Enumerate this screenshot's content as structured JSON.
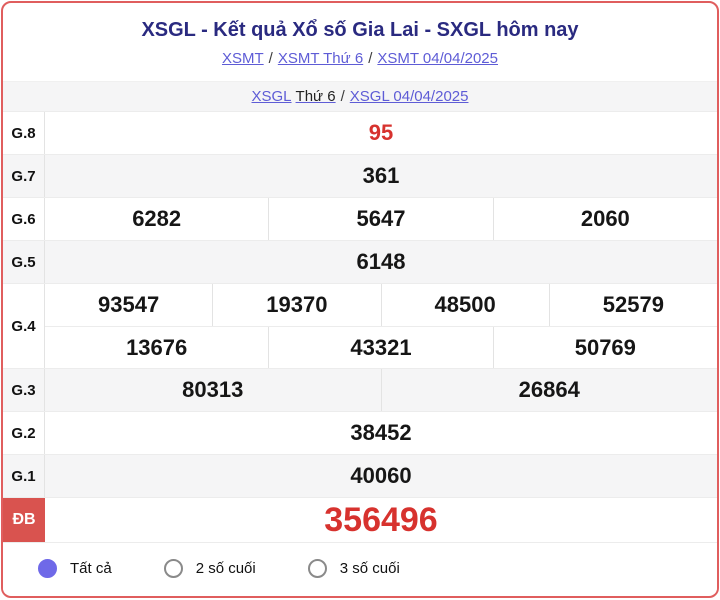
{
  "header": {
    "title": "XSGL - Kết quả Xổ số Gia Lai - SXGL hôm nay",
    "separator": "/",
    "breadcrumb1": [
      "XSMT",
      "XSMT Thứ 6",
      "XSMT 04/04/2025"
    ],
    "breadcrumb2": {
      "link1_blue": "XSGL",
      "link1_dark": "Thứ 6",
      "link2": "XSGL 04/04/2025"
    }
  },
  "results": {
    "rows": [
      {
        "label": "G.8",
        "highlight": true,
        "groups": [
          [
            "95"
          ]
        ]
      },
      {
        "label": "G.7",
        "groups": [
          [
            "361"
          ]
        ]
      },
      {
        "label": "G.6",
        "groups": [
          [
            "6282",
            "5647",
            "2060"
          ]
        ]
      },
      {
        "label": "G.5",
        "groups": [
          [
            "6148"
          ]
        ]
      },
      {
        "label": "G.4",
        "groups": [
          [
            "93547",
            "19370",
            "48500",
            "52579"
          ],
          [
            "13676",
            "43321",
            "50769"
          ]
        ]
      },
      {
        "label": "G.3",
        "groups": [
          [
            "80313",
            "26864"
          ]
        ]
      },
      {
        "label": "G.2",
        "groups": [
          [
            "38452"
          ]
        ]
      },
      {
        "label": "G.1",
        "groups": [
          [
            "40060"
          ]
        ]
      },
      {
        "label": "ĐB",
        "special": true,
        "groups": [
          [
            "356496"
          ]
        ]
      }
    ]
  },
  "filters": {
    "options": [
      {
        "label": "Tất cả",
        "selected": true
      },
      {
        "label": "2 số cuối",
        "selected": false
      },
      {
        "label": "3 số cuối",
        "selected": false
      }
    ]
  },
  "colors": {
    "accent_red": "#d7322e",
    "special_bg": "#d9534f",
    "border_red": "#e05e5e",
    "link_blue": "#5e5cd6",
    "radio_purple": "#6f69e8",
    "title_navy": "#2a2a80",
    "row_alt_bg": "#f5f5f6"
  }
}
